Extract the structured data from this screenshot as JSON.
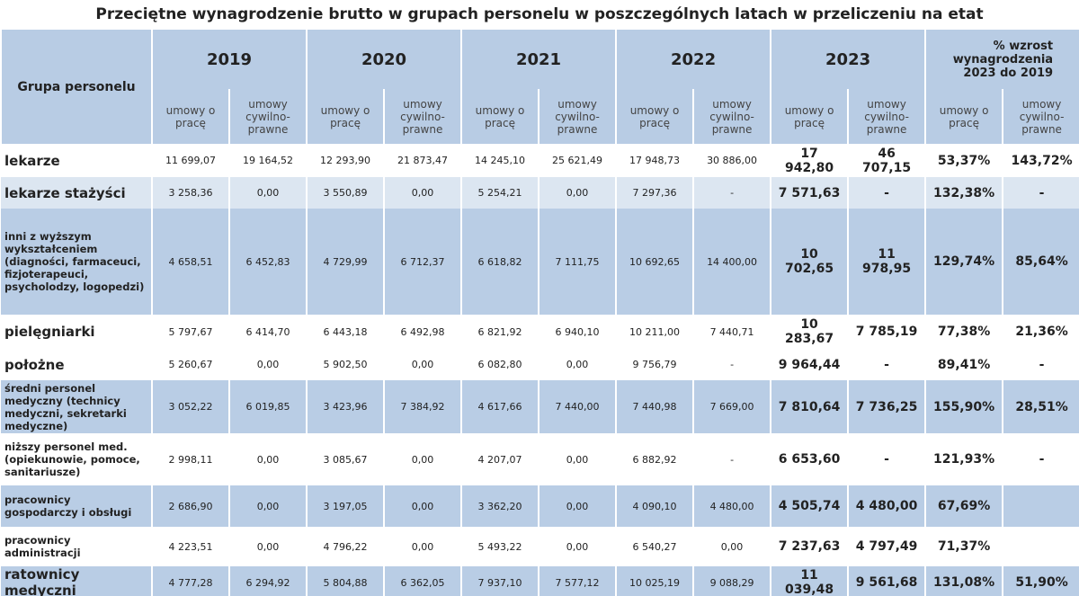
{
  "title": "Przeciętne wynagrodzenie brutto w grupach personelu w poszczególnych latach w przeliczeniu na etat",
  "table": {
    "header": {
      "group_label": "Grupa personelu",
      "years": [
        "2019",
        "2020",
        "2021",
        "2022",
        "2023"
      ],
      "pct_label": "% wzrost wynagrodzenia 2023 do 2019",
      "sub": [
        "umowy o pracę",
        "umowy cywilno-prawne"
      ]
    },
    "rows": [
      [
        "lekarze",
        "11 699,07",
        "19 164,52",
        "12 293,90",
        "21 873,47",
        "14 245,10",
        "25 621,49",
        "17 948,73",
        "30 886,00",
        "17 942,80",
        "46 707,15",
        "53,37%",
        "143,72%"
      ],
      [
        "lekarze stażyści",
        "3 258,36",
        "0,00",
        "3 550,89",
        "0,00",
        "5 254,21",
        "0,00",
        "7 297,36",
        "-",
        "7 571,63",
        "-",
        "132,38%",
        "-"
      ],
      [
        "inni z wyższym wykształceniem (diagności, farmaceuci, fizjoterapeuci, psycholodzy, logopedzi)",
        "4 658,51",
        "6 452,83",
        "4 729,99",
        "6 712,37",
        "6 618,82",
        "7 111,75",
        "10 692,65",
        "14 400,00",
        "10 702,65",
        "11 978,95",
        "129,74%",
        "85,64%"
      ],
      [
        "pielęgniarki",
        "5 797,67",
        "6 414,70",
        "6 443,18",
        "6 492,98",
        "6 821,92",
        "6 940,10",
        "10 211,00",
        "7 440,71",
        "10 283,67",
        "7 785,19",
        "77,38%",
        "21,36%"
      ],
      [
        "położne",
        "5 260,67",
        "0,00",
        "5 902,50",
        "0,00",
        "6 082,80",
        "0,00",
        "9 756,79",
        "-",
        "9 964,44",
        "-",
        "89,41%",
        "-"
      ],
      [
        "średni personel medyczny (technicy medyczni, sekretarki medyczne)",
        "3 052,22",
        "6 019,85",
        "3 423,96",
        "7 384,92",
        "4 617,66",
        "7 440,00",
        "7 440,98",
        "7 669,00",
        "7 810,64",
        "7 736,25",
        "155,90%",
        "28,51%"
      ],
      [
        "niższy personel med. (opiekunowie, pomoce, sanitariusze)",
        "2 998,11",
        "0,00",
        "3 085,67",
        "0,00",
        "4 207,07",
        "0,00",
        "6 882,92",
        "-",
        "6 653,60",
        "-",
        "121,93%",
        "-"
      ],
      [
        "pracownicy gospodarczy i obsługi",
        "2 686,90",
        "0,00",
        "3 197,05",
        "0,00",
        "3 362,20",
        "0,00",
        "4 090,10",
        "4 480,00",
        "4 505,74",
        "4 480,00",
        "67,69%",
        null
      ],
      [
        "pracownicy administracji",
        "4 223,51",
        "0,00",
        "4 796,22",
        "0,00",
        "5 493,22",
        "0,00",
        "6 540,27",
        "0,00",
        "7 237,63",
        "4 797,49",
        "71,37%",
        null
      ],
      [
        "ratownicy medyczni",
        "4 777,28",
        "6 294,92",
        "5 804,88",
        "6 362,05",
        "7 937,10",
        "7 577,12",
        "10 025,19",
        "9 088,29",
        "11 039,48",
        "9 561,68",
        "131,08%",
        "51,90%"
      ]
    ]
  }
}
